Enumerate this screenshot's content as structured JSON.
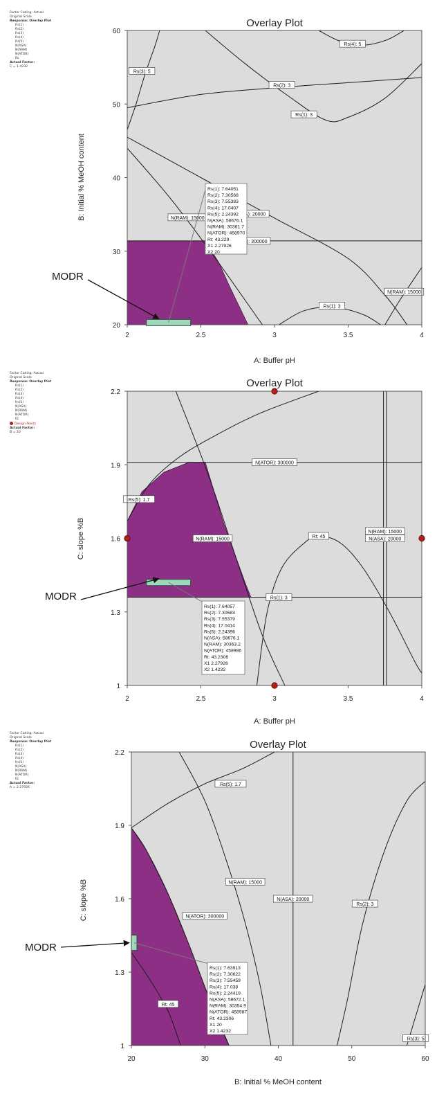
{
  "chart_data": [
    {
      "type": "overlay-contour",
      "title": "Overlay Plot",
      "xlabel": "A: Buffer pH",
      "ylabel": "B: Initial % MeOH content",
      "xlim": [
        2,
        4
      ],
      "ylim": [
        20,
        60
      ],
      "xticks": [
        2,
        2.5,
        3,
        3.5,
        4
      ],
      "yticks": [
        20,
        30,
        40,
        50,
        60
      ],
      "x_tick_labels": [
        "2",
        "2.5",
        "3",
        "3.5",
        "4"
      ],
      "y_tick_labels": [
        "20",
        "30",
        "40",
        "50",
        "60"
      ],
      "legend": {
        "factor_coding": "Factor Coding: Actual",
        "scale": "Original Scale",
        "response_header": "Response: Overlay Plot",
        "responses": [
          "Rs(1)",
          "Rs(2)",
          "Rs(3)",
          "Rs(4)",
          "Rs(5)",
          "N(ASA)",
          "N(RAM)",
          "N(ATOR)",
          "Rt"
        ],
        "actual_factor_header": "Actual Factor:",
        "actual_factor": "C = 1.4232"
      },
      "region_color": "#8e2f86",
      "design_space": [
        [
          2,
          20
        ],
        [
          2,
          31.4
        ],
        [
          2.53,
          31.4
        ],
        [
          2.62,
          28.5
        ],
        [
          2.7,
          25
        ],
        [
          2.76,
          22.5
        ],
        [
          2.82,
          20
        ]
      ],
      "contours": [
        {
          "label": "Rs(3): 5",
          "points": [
            [
              2,
              46.5
            ],
            [
              2.06,
              50
            ],
            [
              2.12,
              54
            ],
            [
              2.19,
              58
            ],
            [
              2.22,
              60
            ]
          ]
        },
        {
          "label": "Rs(2): 3",
          "points": [
            [
              2,
              49.5
            ],
            [
              2.5,
              51.3
            ],
            [
              3,
              52.2
            ],
            [
              3.5,
              52.9
            ],
            [
              4,
              53.6
            ]
          ]
        },
        {
          "label": "Rs(1): 3",
          "points": [
            [
              2.53,
              60
            ],
            [
              2.8,
              55.5
            ],
            [
              3.1,
              51
            ],
            [
              3.35,
              47.8
            ],
            [
              3.5,
              48.2
            ],
            [
              3.75,
              50.8
            ],
            [
              4,
              55.5
            ]
          ]
        },
        {
          "label": "Rs(4): 5",
          "points": [
            [
              3.3,
              60
            ],
            [
              3.45,
              58.5
            ],
            [
              3.6,
              58
            ],
            [
              3.76,
              58.7
            ],
            [
              3.88,
              60
            ]
          ]
        },
        {
          "label": "N(RAM): 15000",
          "points": [
            [
              2,
              44
            ],
            [
              2.3,
              37
            ],
            [
              2.6,
              29
            ],
            [
              2.9,
              20.5
            ],
            [
              2.92,
              20
            ]
          ]
        },
        {
          "label": "N(ASA): 20000",
          "points": [
            [
              2,
              45.5
            ],
            [
              2.5,
              40
            ],
            [
              3,
              34.5
            ],
            [
              3.5,
              29
            ],
            [
              3.75,
              24
            ],
            [
              3.9,
              20
            ]
          ]
        },
        {
          "label": "N(ATOR): 300000",
          "points": [
            [
              2,
              31.4
            ],
            [
              4,
              31.4
            ]
          ]
        },
        {
          "label": "Rs(1): 3",
          "points": [
            [
              3.03,
              20
            ],
            [
              3.2,
              21.9
            ],
            [
              3.4,
              22.4
            ],
            [
              3.6,
              21.4
            ],
            [
              3.72,
              20
            ]
          ]
        },
        {
          "label": "N(RAM): 15000",
          "points": [
            [
              3.75,
              20
            ],
            [
              3.85,
              23.3
            ],
            [
              4,
              27.8
            ]
          ]
        }
      ],
      "contour_label_positions": [
        [
          2.1,
          54.5
        ],
        [
          3.05,
          52.6
        ],
        [
          3.2,
          48.6
        ],
        [
          3.53,
          58.2
        ],
        [
          2.41,
          34.6
        ],
        [
          2.83,
          35.1
        ],
        [
          2.82,
          31.4
        ],
        [
          3.39,
          22.6
        ],
        [
          3.88,
          24.5
        ]
      ],
      "annotation_label": "MODR",
      "modr_point": [
        2.28,
        20.3
      ],
      "tooltip": [
        "Rs(1):   7.64051",
        "Rs(2):   7.30568",
        "Rs(3):   7.55383",
        "Rs(4):   17.0407",
        "Rs(5):   2.24392",
        "N(ASA):   58676.1",
        "N(RAM):   30361.7",
        "N(ATOR):   458970",
        "Rt:   43.229",
        "X1  2.27926",
        "X2  20"
      ],
      "design_points": []
    },
    {
      "type": "overlay-contour",
      "title": "Overlay Plot",
      "xlabel": "A: Buffer pH",
      "ylabel": "C: slope %B",
      "xlim": [
        2,
        4
      ],
      "ylim": [
        1,
        2.2
      ],
      "xticks": [
        2,
        2.5,
        3,
        3.5,
        4
      ],
      "yticks": [
        1,
        1.3,
        1.6,
        1.9,
        2.2
      ],
      "x_tick_labels": [
        "2",
        "2.5",
        "3",
        "3.5",
        "4"
      ],
      "y_tick_labels": [
        "1",
        "1.3",
        "1.6",
        "1.9",
        "2.2"
      ],
      "legend": {
        "factor_coding": "Factor Coding: Actual",
        "scale": "Original Scale",
        "response_header": "Response: Overlay Plot",
        "responses": [
          "Rs(1)",
          "Rs(2)",
          "Rs(3)",
          "Rs(4)",
          "Rs(5)",
          "N(ASA)",
          "N(RAM)",
          "N(ATOR)",
          "Rt"
        ],
        "design_points_label": "Design Points",
        "actual_factor_header": "Actual Factor:",
        "actual_factor": "B = 20"
      },
      "region_color": "#8e2f86",
      "design_space": [
        [
          2,
          1.36
        ],
        [
          2,
          1.67
        ],
        [
          2.1,
          1.79
        ],
        [
          2.25,
          1.87
        ],
        [
          2.42,
          1.91
        ],
        [
          2.53,
          1.91
        ],
        [
          2.65,
          1.67
        ],
        [
          2.8,
          1.42
        ],
        [
          2.84,
          1.36
        ]
      ],
      "contours": [
        {
          "label": "Rs(5): 1.7",
          "points": [
            [
              2,
              1.67
            ],
            [
              2.15,
              1.82
            ],
            [
              2.35,
              1.93
            ],
            [
              2.6,
              2.02
            ],
            [
              2.9,
              2.11
            ],
            [
              3.3,
              2.2
            ]
          ]
        },
        {
          "label": "N(ATOR): 300000",
          "points": [
            [
              2,
              1.91
            ],
            [
              4,
              1.91
            ]
          ]
        },
        {
          "label": "N(RAM): 15000",
          "points": [
            [
              2.33,
              2.2
            ],
            [
              2.55,
              1.86
            ],
            [
              2.75,
              1.5
            ],
            [
              2.92,
              1.2
            ],
            [
              3.07,
              1
            ]
          ]
        },
        {
          "label": "Rt: 45",
          "points": [
            [
              2,
              1.36
            ],
            [
              4,
              1.36
            ]
          ]
        },
        {
          "label": "Rs(1): 3",
          "points": [
            [
              2.88,
              1
            ],
            [
              2.95,
              1.3
            ],
            [
              3.05,
              1.48
            ],
            [
              3.2,
              1.58
            ],
            [
              3.3,
              1.61
            ],
            [
              3.45,
              1.58
            ],
            [
              3.6,
              1.48
            ],
            [
              3.78,
              1.3
            ],
            [
              3.95,
              1.1
            ],
            [
              4,
              1.05
            ]
          ]
        },
        {
          "label": "N(RAM): 15000",
          "points": [
            [
              3.74,
              1
            ],
            [
              3.74,
              2.2
            ]
          ]
        },
        {
          "label": "N(ASA): 20000",
          "points": [
            [
              3.76,
              1
            ],
            [
              3.76,
              2.2
            ]
          ]
        }
      ],
      "contour_label_positions": [
        [
          2.08,
          1.76
        ],
        [
          3,
          1.91
        ],
        [
          2.58,
          1.6
        ],
        [
          3.3,
          1.61
        ],
        [
          3.03,
          1.36
        ],
        [
          3.75,
          1.63
        ],
        [
          3.75,
          1.6
        ]
      ],
      "annotation_label": "MODR",
      "modr_point": [
        2.28,
        1.42
      ],
      "tooltip": [
        "Rs(1):   7.64057",
        "Rs(2):   7.30583",
        "Rs(3):   7.55379",
        "Rs(4):   17.0414",
        "Rs(5):   2.24396",
        "N(ASA):   58676.1",
        "N(RAM):   30363.2",
        "N(ATOR):   458986",
        "Rt:   43.2306",
        "X1  2.27926",
        "X2  1.4232"
      ],
      "design_points": [
        [
          3,
          2.2
        ],
        [
          2,
          1.6
        ],
        [
          4,
          1.6
        ],
        [
          3,
          1
        ]
      ]
    },
    {
      "type": "overlay-contour",
      "title": "Overlay Plot",
      "xlabel": "B: Initial % MeOH content",
      "ylabel": "C: slope %B",
      "xlim": [
        20,
        60
      ],
      "ylim": [
        1,
        2.2
      ],
      "xticks": [
        20,
        30,
        40,
        50,
        60
      ],
      "yticks": [
        1,
        1.3,
        1.6,
        1.9,
        2.2
      ],
      "x_tick_labels": [
        "20",
        "30",
        "40",
        "50",
        "60"
      ],
      "y_tick_labels": [
        "1",
        "1.3",
        "1.6",
        "1.9",
        "2.2"
      ],
      "legend": {
        "factor_coding": "Factor Coding: Actual",
        "scale": "Original Scale",
        "response_header": "Response: Overlay Plot",
        "responses": [
          "Rs(1)",
          "Rs(2)",
          "Rs(3)",
          "Rs(4)",
          "Rs(5)",
          "N(ASA)",
          "N(RAM)",
          "N(ATOR)",
          "Rt"
        ],
        "actual_factor_header": "Actual Factor:",
        "actual_factor": "A = 2.27926"
      },
      "region_color": "#8e2f86",
      "design_space": [
        [
          20,
          1
        ],
        [
          20,
          1.89
        ],
        [
          22,
          1.8
        ],
        [
          25,
          1.62
        ],
        [
          28,
          1.4
        ],
        [
          30.5,
          1.2
        ],
        [
          32.5,
          1.05
        ],
        [
          33.3,
          1
        ]
      ],
      "contours": [
        {
          "label": "Rs(5): 1.7",
          "points": [
            [
              20,
              1.89
            ],
            [
              25,
              1.99
            ],
            [
              30,
              2.07
            ],
            [
              35,
              2.13
            ],
            [
              39.5,
              2.2
            ]
          ]
        },
        {
          "label": "N(ATOR): 300000",
          "points": [
            [
              20,
              1.89
            ],
            [
              22,
              1.8
            ],
            [
              25,
              1.62
            ],
            [
              28,
              1.4
            ],
            [
              30.5,
              1.2
            ],
            [
              33.3,
              1
            ]
          ]
        },
        {
          "label": "Rt: 45",
          "points": [
            [
              20,
              1.38
            ],
            [
              22.5,
              1.27
            ],
            [
              25,
              1.14
            ],
            [
              26.7,
              1
            ]
          ]
        },
        {
          "label": "N(RAM): 15000",
          "points": [
            [
              26.5,
              2.2
            ],
            [
              30,
              2
            ],
            [
              33,
              1.75
            ],
            [
              35.5,
              1.5
            ],
            [
              37.5,
              1.25
            ],
            [
              39,
              1
            ]
          ]
        },
        {
          "label": "N(ASA): 20000",
          "points": [
            [
              42,
              1
            ],
            [
              42,
              2.2
            ]
          ]
        },
        {
          "label": "Rs(2): 3",
          "points": [
            [
              48,
              1
            ],
            [
              49.5,
              1.2
            ],
            [
              51.5,
              1.5
            ],
            [
              54.5,
              1.8
            ],
            [
              57.5,
              2
            ],
            [
              60,
              2.08
            ]
          ]
        },
        {
          "label": "Rs(3): 5",
          "points": [
            [
              57.5,
              1
            ],
            [
              59,
              1.15
            ],
            [
              60,
              1.25
            ]
          ]
        }
      ],
      "contour_label_positions": [
        [
          33.5,
          2.07
        ],
        [
          30,
          1.53
        ],
        [
          25,
          1.17
        ],
        [
          35.5,
          1.67
        ],
        [
          42,
          1.6
        ],
        [
          51.8,
          1.58
        ],
        [
          58.7,
          1.03
        ]
      ],
      "annotation_label": "MODR",
      "modr_point": [
        20.3,
        1.42
      ],
      "tooltip": [
        "Rs(1):   7.63913",
        "Rs(2):   7.30622",
        "Rs(3):   7.55459",
        "Rs(4):   17.038",
        "Rs(5):   2.24419",
        "N(ASA):   58672.1",
        "N(RAM):   30354.9",
        "N(ATOR):   458987",
        "Rt:   43.2306",
        "X1  20",
        "X2  1.4232"
      ],
      "design_points": []
    }
  ]
}
